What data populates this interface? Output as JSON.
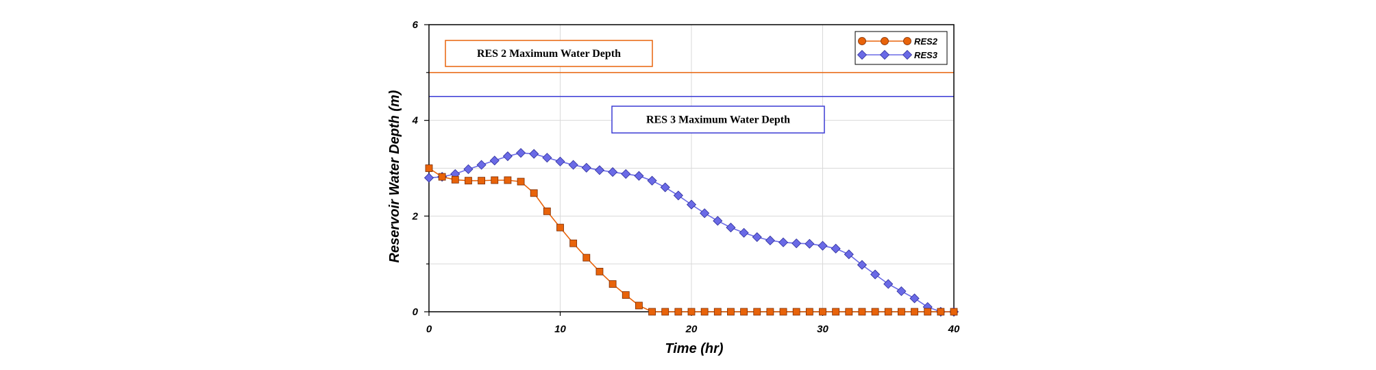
{
  "chart_data": {
    "type": "line",
    "title": "",
    "xlabel": "Time (hr)",
    "ylabel": "Reservoir Water Depth (m)",
    "xlim": [
      0,
      40
    ],
    "ylim": [
      0,
      6
    ],
    "x_ticks": [
      0,
      10,
      20,
      30,
      40
    ],
    "x_tick_labels": [
      "0",
      "10",
      "20",
      "30",
      "40"
    ],
    "y_ticks": [
      0,
      2,
      4,
      6
    ],
    "y_tick_labels": [
      "0",
      "2",
      "4",
      "6"
    ],
    "grid": true,
    "legend_position": "top-right",
    "x": [
      0,
      1,
      2,
      3,
      4,
      5,
      6,
      7,
      8,
      9,
      10,
      11,
      12,
      13,
      14,
      15,
      16,
      17,
      18,
      19,
      20,
      21,
      22,
      23,
      24,
      25,
      26,
      27,
      28,
      29,
      30,
      31,
      32,
      33,
      34,
      35,
      36,
      37,
      38,
      39,
      40
    ],
    "series": [
      {
        "name": "RES2",
        "color": "#e8630a",
        "marker": "square",
        "values": [
          3.0,
          2.82,
          2.76,
          2.74,
          2.74,
          2.75,
          2.75,
          2.72,
          2.48,
          2.1,
          1.76,
          1.43,
          1.13,
          0.84,
          0.58,
          0.35,
          0.13,
          0,
          0,
          0,
          0,
          0,
          0,
          0,
          0,
          0,
          0,
          0,
          0,
          0,
          0,
          0,
          0,
          0,
          0,
          0,
          0,
          0,
          0,
          0,
          0
        ]
      },
      {
        "name": "RES3",
        "color": "#6a6ae6",
        "marker": "diamond",
        "values": [
          2.8,
          2.82,
          2.88,
          2.98,
          3.07,
          3.16,
          3.25,
          3.32,
          3.3,
          3.22,
          3.14,
          3.07,
          3.01,
          2.96,
          2.92,
          2.88,
          2.84,
          2.74,
          2.6,
          2.43,
          2.24,
          2.06,
          1.9,
          1.76,
          1.65,
          1.56,
          1.49,
          1.45,
          1.43,
          1.42,
          1.38,
          1.32,
          1.2,
          0.98,
          0.78,
          0.58,
          0.43,
          0.28,
          0.1,
          0.0,
          0.0
        ]
      }
    ],
    "reference_lines": [
      {
        "name": "RES 2 Maximum Water Depth",
        "y": 5.0,
        "color": "#e8630a"
      },
      {
        "name": "RES 3 Maximum Water Depth",
        "y": 4.5,
        "color": "#3a3ad4"
      }
    ],
    "annotations": [
      {
        "text": "RES 2 Maximum Water Depth",
        "color": "#e8630a"
      },
      {
        "text": "RES 3 Maximum Water Depth",
        "color": "#3a3ad4"
      }
    ]
  }
}
